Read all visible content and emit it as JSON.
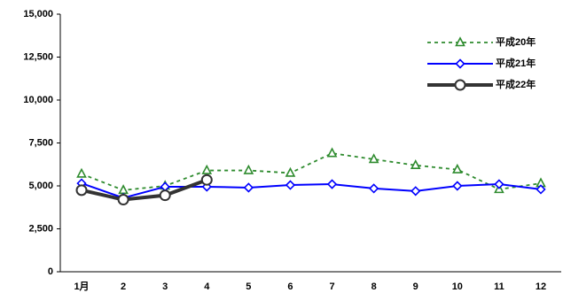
{
  "chart_data": {
    "type": "line",
    "categories": [
      "1月",
      "2",
      "3",
      "4",
      "5",
      "6",
      "7",
      "8",
      "9",
      "10",
      "11",
      "12"
    ],
    "series": [
      {
        "name": "平成20年",
        "color": "#2e8b2e",
        "marker": "triangle",
        "style": "dashed",
        "values": [
          5700,
          4750,
          5000,
          5900,
          5900,
          5750,
          6900,
          6550,
          6200,
          5950,
          4800,
          5150
        ]
      },
      {
        "name": "平成21年",
        "color": "#0000ff",
        "marker": "diamond",
        "style": "solid",
        "values": [
          5150,
          4300,
          4950,
          4950,
          4900,
          5050,
          5100,
          4850,
          4700,
          5000,
          5100,
          4800
        ]
      },
      {
        "name": "平成22年",
        "color": "#333333",
        "marker": "circle",
        "style": "thick",
        "values": [
          4750,
          4200,
          4450,
          5350,
          null,
          null,
          null,
          null,
          null,
          null,
          null,
          null
        ]
      }
    ],
    "ylim": [
      0,
      15000
    ],
    "yticks": [
      0,
      {
        "value": 2500,
        "label": "2,500"
      },
      {
        "value": 5000,
        "label": "5,000"
      },
      {
        "value": 7500,
        "label": "7,500"
      },
      {
        "value": 10000,
        "label": "10,000"
      },
      {
        "value": 12500,
        "label": "12,500"
      },
      {
        "value": 15000,
        "label": "15,000"
      }
    ],
    "legend": "upper right"
  }
}
